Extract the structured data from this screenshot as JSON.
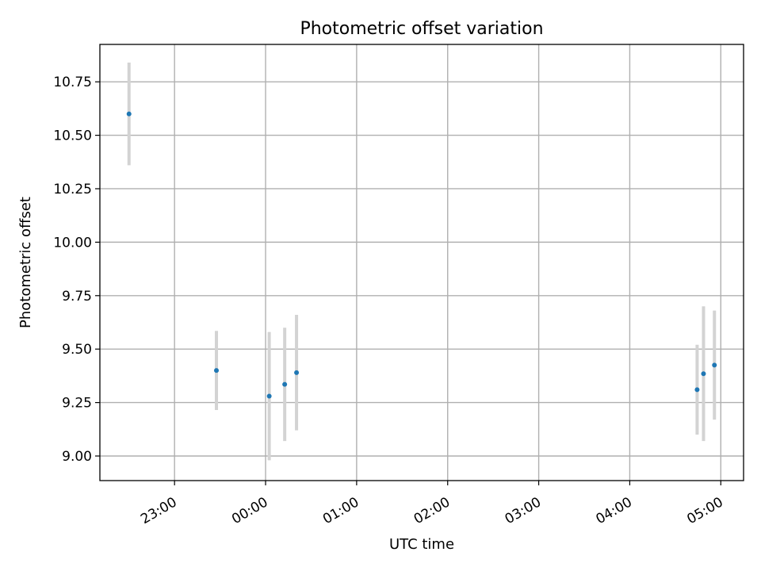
{
  "chart_data": {
    "type": "scatter",
    "title": "Photometric offset variation",
    "xlabel": "UTC time",
    "ylabel": "Photometric offset",
    "grid": true,
    "x_unit": "hours relative to 00:00 UTC",
    "xlim": [
      -1.82,
      5.25
    ],
    "ylim": [
      8.885,
      10.925
    ],
    "x_ticks": [
      {
        "value": -1,
        "label": "23:00"
      },
      {
        "value": 0,
        "label": "00:00"
      },
      {
        "value": 1,
        "label": "01:00"
      },
      {
        "value": 2,
        "label": "02:00"
      },
      {
        "value": 3,
        "label": "03:00"
      },
      {
        "value": 4,
        "label": "04:00"
      },
      {
        "value": 5,
        "label": "05:00"
      }
    ],
    "y_ticks": [
      {
        "value": 9.0,
        "label": "9.00"
      },
      {
        "value": 9.25,
        "label": "9.25"
      },
      {
        "value": 9.5,
        "label": "9.50"
      },
      {
        "value": 9.75,
        "label": "9.75"
      },
      {
        "value": 10.0,
        "label": "10.00"
      },
      {
        "value": 10.25,
        "label": "10.25"
      },
      {
        "value": 10.5,
        "label": "10.50"
      },
      {
        "value": 10.75,
        "label": "10.75"
      }
    ],
    "series": [
      {
        "name": "Photometric offset",
        "marker_color": "#1f77b4",
        "errorbar_color": "#d3d3d3",
        "points": [
          {
            "x": -1.5,
            "y": 10.6,
            "yerr": 0.24
          },
          {
            "x": -0.54,
            "y": 9.4,
            "yerr": 0.185
          },
          {
            "x": 0.04,
            "y": 9.28,
            "yerr": 0.3
          },
          {
            "x": 0.21,
            "y": 9.335,
            "yerr": 0.265
          },
          {
            "x": 0.34,
            "y": 9.39,
            "yerr": 0.27
          },
          {
            "x": 4.74,
            "y": 9.31,
            "yerr": 0.21
          },
          {
            "x": 4.81,
            "y": 9.385,
            "yerr": 0.315
          },
          {
            "x": 4.93,
            "y": 9.425,
            "yerr": 0.255
          }
        ]
      }
    ]
  }
}
